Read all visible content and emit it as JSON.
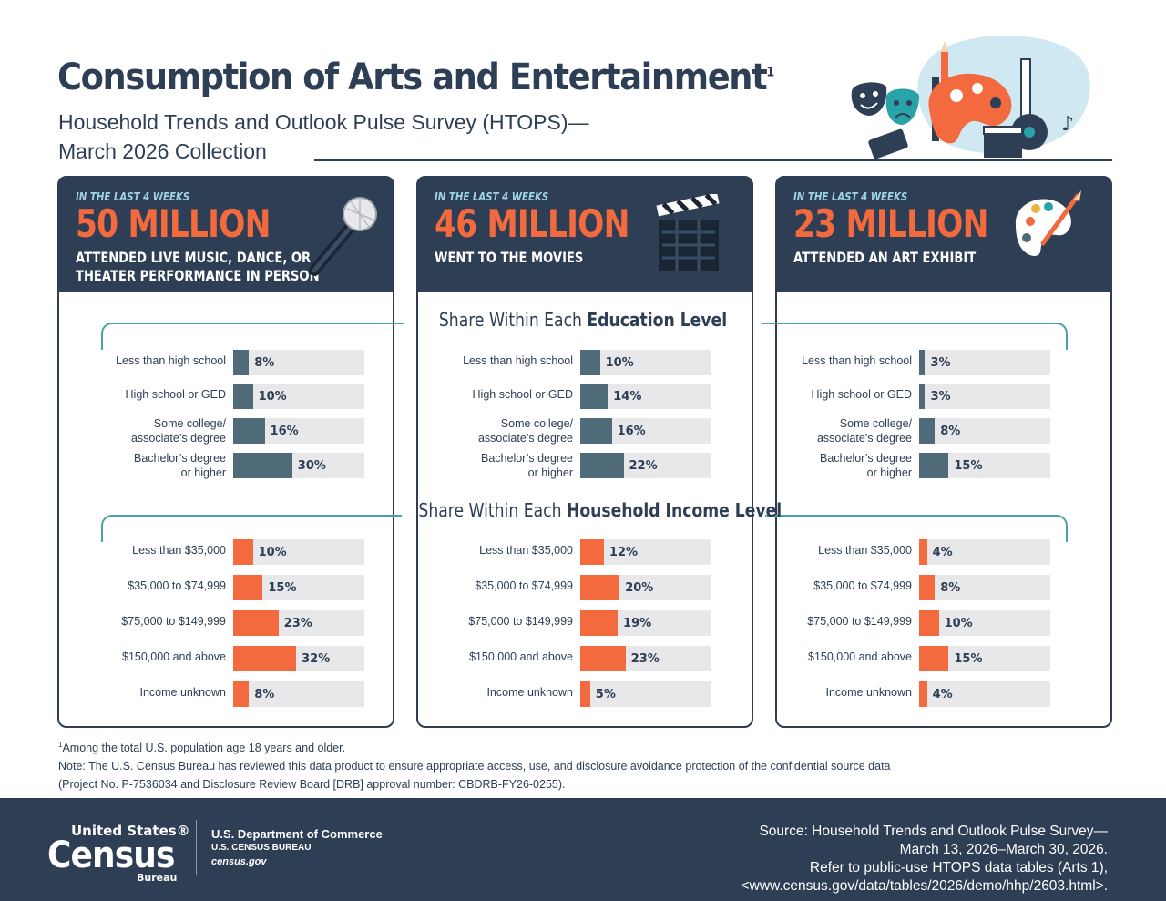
{
  "header": {
    "title": "Consumption of Arts and Entertainment",
    "title_sup": "1",
    "subtitle_line1": "Household Trends and Outlook Pulse Survey (HTOPS)—",
    "subtitle_line2": "March 2026 Collection"
  },
  "section_titles": {
    "education_prefix": "Share Within Each ",
    "education_bold": "Education Level",
    "income_prefix": "Share Within Each ",
    "income_bold": "Household Income Level"
  },
  "colors": {
    "navy": "#2d3e55",
    "education_bar": "#4f6b7a",
    "income_bar": "#f26a3d",
    "track": "#e8e8ea",
    "accent_teal": "#4aa0ad"
  },
  "cards": [
    {
      "kicker": "IN THE LAST 4 WEEKS",
      "headline": "50 MILLION",
      "desc_line1": "ATTENDED LIVE MUSIC, DANCE, OR",
      "desc_line2": "THEATER PERFORMANCE IN PERSON",
      "icon": "microphone-icon"
    },
    {
      "kicker": "IN THE LAST 4 WEEKS",
      "headline": "46 MILLION",
      "desc_line1": "WENT TO THE MOVIES",
      "desc_line2": "",
      "icon": "clapperboard-icon"
    },
    {
      "kicker": "IN THE LAST 4 WEEKS",
      "headline": "23 MILLION",
      "desc_line1": "ATTENDED AN ART EXHIBIT",
      "desc_line2": "",
      "icon": "paint-palette-icon"
    }
  ],
  "chart_data": [
    {
      "type": "bar",
      "group": "education",
      "activity": "ATTENDED LIVE MUSIC, DANCE, OR THEATER PERFORMANCE IN PERSON",
      "categories": [
        [
          "Less than high school"
        ],
        [
          "High school or GED"
        ],
        [
          "Some college/",
          "associate’s degree"
        ],
        [
          "Bachelor’s degree",
          "or higher"
        ]
      ],
      "values": [
        8,
        10,
        16,
        30
      ],
      "labels": [
        "8%",
        "10%",
        "16%",
        "30%"
      ],
      "ylim": [
        0,
        100
      ]
    },
    {
      "type": "bar",
      "group": "education",
      "activity": "WENT TO THE MOVIES",
      "categories": [
        [
          "Less than high school"
        ],
        [
          "High school or GED"
        ],
        [
          "Some college/",
          "associate’s degree"
        ],
        [
          "Bachelor’s degree",
          "or higher"
        ]
      ],
      "values": [
        10,
        14,
        16,
        22
      ],
      "labels": [
        "10%",
        "14%",
        "16%",
        "22%"
      ],
      "ylim": [
        0,
        100
      ]
    },
    {
      "type": "bar",
      "group": "education",
      "activity": "ATTENDED AN ART EXHIBIT",
      "categories": [
        [
          "Less than high school"
        ],
        [
          "High school or GED"
        ],
        [
          "Some college/",
          "associate’s degree"
        ],
        [
          "Bachelor’s degree",
          "or higher"
        ]
      ],
      "values": [
        3,
        3,
        8,
        15
      ],
      "labels": [
        "3%",
        "3%",
        "8%",
        "15%"
      ],
      "ylim": [
        0,
        100
      ]
    },
    {
      "type": "bar",
      "group": "income",
      "activity": "ATTENDED LIVE MUSIC, DANCE, OR THEATER PERFORMANCE IN PERSON",
      "categories": [
        [
          "Less than $35,000"
        ],
        [
          "$35,000 to $74,999"
        ],
        [
          "$75,000 to $149,999"
        ],
        [
          "$150,000 and above"
        ],
        [
          "Income unknown"
        ]
      ],
      "values": [
        10,
        15,
        23,
        32,
        8
      ],
      "labels": [
        "10%",
        "15%",
        "23%",
        "32%",
        "8%"
      ],
      "ylim": [
        0,
        100
      ]
    },
    {
      "type": "bar",
      "group": "income",
      "activity": "WENT TO THE MOVIES",
      "categories": [
        [
          "Less than $35,000"
        ],
        [
          "$35,000 to $74,999"
        ],
        [
          "$75,000 to $149,999"
        ],
        [
          "$150,000 and above"
        ],
        [
          "Income unknown"
        ]
      ],
      "values": [
        12,
        20,
        19,
        23,
        5
      ],
      "labels": [
        "12%",
        "20%",
        "19%",
        "23%",
        "5%"
      ],
      "ylim": [
        0,
        100
      ]
    },
    {
      "type": "bar",
      "group": "income",
      "activity": "ATTENDED AN ART EXHIBIT",
      "categories": [
        [
          "Less than $35,000"
        ],
        [
          "$35,000 to $74,999"
        ],
        [
          "$75,000 to $149,999"
        ],
        [
          "$150,000 and above"
        ],
        [
          "Income unknown"
        ]
      ],
      "values": [
        4,
        8,
        10,
        15,
        4
      ],
      "labels": [
        "4%",
        "8%",
        "10%",
        "15%",
        "4%"
      ],
      "ylim": [
        0,
        100
      ]
    }
  ],
  "footnotes": {
    "note1_sup": "1",
    "note1": "Among the total U.S. population age 18 years and older.",
    "note2_line1": "Note: The U.S. Census Bureau has reviewed this data product to ensure appropriate access, use, and disclosure avoidance protection of the confidential source data",
    "note2_line2": "(Project No. P-7536034 and Disclosure Review Board [DRB] approval number: CBDRB-FY26-0255)."
  },
  "footer": {
    "logo_line1": "United States®",
    "logo_line2": "Census",
    "logo_line3": "Bureau",
    "dept": "U.S. Department of Commerce",
    "bureau": "U.S. CENSUS BUREAU",
    "site": "census.gov",
    "source_line1": "Source: Household Trends and Outlook Pulse Survey—",
    "source_line2": "March 13, 2026–March 30, 2026.",
    "source_line3": "Refer to public-use HTOPS data tables (Arts 1),",
    "source_line4": "<www.census.gov/data/tables/2026/demo/hhp/2603.html>."
  }
}
